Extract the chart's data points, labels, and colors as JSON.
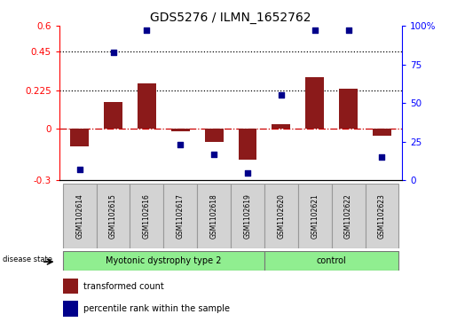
{
  "title": "GDS5276 / ILMN_1652762",
  "samples": [
    "GSM1102614",
    "GSM1102615",
    "GSM1102616",
    "GSM1102617",
    "GSM1102618",
    "GSM1102619",
    "GSM1102620",
    "GSM1102621",
    "GSM1102622",
    "GSM1102623"
  ],
  "transformed_count": [
    -0.1,
    0.155,
    0.265,
    -0.015,
    -0.075,
    -0.18,
    0.025,
    0.3,
    0.235,
    -0.04
  ],
  "percentile_rank": [
    7,
    83,
    97,
    23,
    17,
    5,
    55,
    97,
    97,
    15
  ],
  "groups": [
    {
      "label": "Myotonic dystrophy type 2",
      "start": 0,
      "end": 6,
      "color": "#90EE90"
    },
    {
      "label": "control",
      "start": 6,
      "end": 10,
      "color": "#90EE90"
    }
  ],
  "ylim_left": [
    -0.3,
    0.6
  ],
  "ylim_right": [
    0,
    100
  ],
  "yticks_left": [
    -0.3,
    0.0,
    0.225,
    0.45,
    0.6
  ],
  "yticks_right": [
    0,
    25,
    50,
    75,
    100
  ],
  "ytick_labels_left": [
    "-0.3",
    "0",
    "0.225",
    "0.45",
    "0.6"
  ],
  "ytick_labels_right": [
    "0",
    "25",
    "50",
    "75",
    "100%"
  ],
  "hlines": [
    0.225,
    0.45
  ],
  "bar_color": "#8B1A1A",
  "dot_color": "#00008B",
  "zero_line_color": "#CD0000",
  "sample_box_color": "#D3D3D3",
  "bar_width": 0.55
}
